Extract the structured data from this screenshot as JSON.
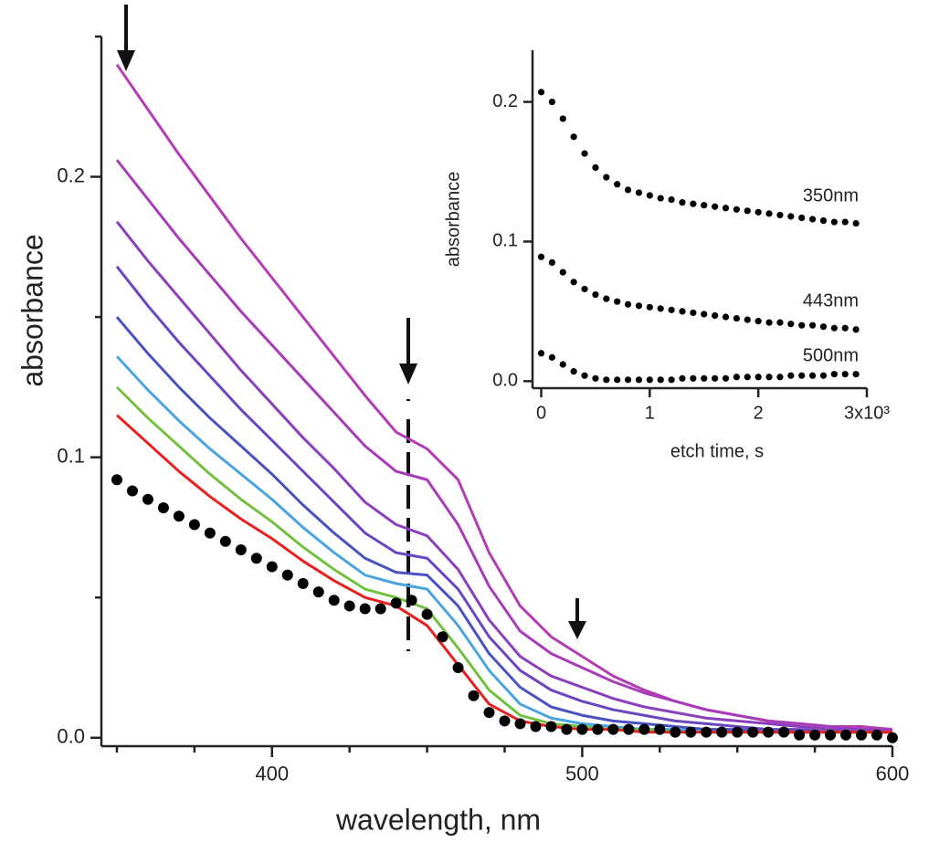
{
  "chart_data": [
    {
      "type": "line",
      "xlabel": "wavelength, nm",
      "ylabel": "absorbance",
      "x": [
        350,
        360,
        370,
        380,
        390,
        400,
        410,
        420,
        430,
        440,
        450,
        460,
        470,
        480,
        490,
        500,
        510,
        520,
        530,
        540,
        550,
        560,
        570,
        580,
        590,
        600
      ],
      "series": [
        {
          "color": "#b43cb4",
          "values": [
            0.24,
            0.224,
            0.208,
            0.193,
            0.178,
            0.164,
            0.15,
            0.136,
            0.122,
            0.109,
            0.103,
            0.092,
            0.066,
            0.047,
            0.036,
            0.029,
            0.022,
            0.017,
            0.013,
            0.01,
            0.008,
            0.006,
            0.005,
            0.004,
            0.004,
            0.003
          ]
        },
        {
          "color": "#a83cb8",
          "values": [
            0.206,
            0.192,
            0.178,
            0.165,
            0.152,
            0.14,
            0.128,
            0.116,
            0.104,
            0.095,
            0.092,
            0.076,
            0.054,
            0.038,
            0.03,
            0.025,
            0.02,
            0.016,
            0.013,
            0.01,
            0.008,
            0.006,
            0.005,
            0.004,
            0.003,
            0.003
          ]
        },
        {
          "color": "#8a40bc",
          "values": [
            0.184,
            0.17,
            0.157,
            0.144,
            0.131,
            0.119,
            0.107,
            0.096,
            0.084,
            0.076,
            0.072,
            0.06,
            0.042,
            0.029,
            0.022,
            0.018,
            0.014,
            0.011,
            0.009,
            0.007,
            0.006,
            0.005,
            0.004,
            0.003,
            0.003,
            0.002
          ]
        },
        {
          "color": "#6a46c0",
          "values": [
            0.168,
            0.154,
            0.141,
            0.129,
            0.117,
            0.106,
            0.095,
            0.084,
            0.073,
            0.066,
            0.064,
            0.053,
            0.036,
            0.024,
            0.017,
            0.013,
            0.01,
            0.008,
            0.006,
            0.005,
            0.004,
            0.003,
            0.003,
            0.002,
            0.002,
            0.002
          ]
        },
        {
          "color": "#4a52c0",
          "values": [
            0.15,
            0.137,
            0.125,
            0.114,
            0.104,
            0.094,
            0.083,
            0.073,
            0.064,
            0.059,
            0.058,
            0.047,
            0.03,
            0.018,
            0.011,
            0.008,
            0.006,
            0.005,
            0.004,
            0.003,
            0.003,
            0.002,
            0.002,
            0.002,
            0.002,
            0.002
          ]
        },
        {
          "color": "#4aa4e0",
          "values": [
            0.136,
            0.124,
            0.113,
            0.103,
            0.094,
            0.085,
            0.075,
            0.066,
            0.058,
            0.055,
            0.053,
            0.04,
            0.024,
            0.012,
            0.007,
            0.005,
            0.004,
            0.003,
            0.003,
            0.002,
            0.002,
            0.002,
            0.002,
            0.002,
            0.002,
            0.002
          ]
        },
        {
          "color": "#74c040",
          "values": [
            0.125,
            0.114,
            0.104,
            0.094,
            0.085,
            0.077,
            0.068,
            0.06,
            0.053,
            0.05,
            0.046,
            0.032,
            0.017,
            0.008,
            0.005,
            0.004,
            0.003,
            0.003,
            0.002,
            0.002,
            0.002,
            0.002,
            0.002,
            0.002,
            0.002,
            0.002
          ]
        },
        {
          "color": "#e82020",
          "values": [
            0.115,
            0.105,
            0.095,
            0.086,
            0.078,
            0.071,
            0.063,
            0.056,
            0.05,
            0.047,
            0.04,
            0.026,
            0.012,
            0.006,
            0.004,
            0.003,
            0.003,
            0.002,
            0.002,
            0.002,
            0.002,
            0.002,
            0.002,
            0.002,
            0.002,
            0.002
          ]
        },
        {
          "color": "#000000",
          "mode": "markers",
          "x": [
            350,
            355,
            360,
            365,
            370,
            375,
            380,
            385,
            390,
            395,
            400,
            405,
            410,
            415,
            420,
            425,
            430,
            435,
            440,
            445,
            450,
            455,
            460,
            465,
            470,
            475,
            480,
            485,
            490,
            495,
            500,
            505,
            510,
            515,
            520,
            525,
            530,
            535,
            540,
            545,
            550,
            555,
            560,
            565,
            570,
            575,
            580,
            585,
            590,
            595,
            600
          ],
          "values": [
            0.092,
            0.088,
            0.085,
            0.082,
            0.079,
            0.076,
            0.073,
            0.07,
            0.067,
            0.064,
            0.061,
            0.058,
            0.055,
            0.052,
            0.049,
            0.047,
            0.046,
            0.046,
            0.048,
            0.049,
            0.044,
            0.036,
            0.025,
            0.015,
            0.009,
            0.006,
            0.005,
            0.004,
            0.004,
            0.003,
            0.003,
            0.003,
            0.003,
            0.003,
            0.003,
            0.003,
            0.002,
            0.002,
            0.002,
            0.002,
            0.002,
            0.002,
            0.002,
            0.002,
            0.001,
            0.001,
            0.001,
            0.001,
            0.001,
            0.001,
            0
          ]
        }
      ],
      "xlim": [
        345,
        600
      ],
      "xticks": [
        400,
        500,
        600
      ],
      "xminorticks": [
        350,
        375,
        425,
        450,
        475,
        525,
        550,
        575
      ],
      "ylim": [
        -0.003,
        0.25
      ],
      "yticks": [
        {
          "value": 0,
          "label": "0.0"
        },
        0.1,
        0.2
      ],
      "yminorticks": [
        0.05,
        0.15,
        0.25
      ]
    },
    {
      "type": "scatter",
      "xlabel": "etch time, s",
      "ylabel": "absorbance",
      "x": [
        0,
        0.1,
        0.2,
        0.3,
        0.4,
        0.5,
        0.6,
        0.7,
        0.8,
        0.9,
        1.0,
        1.1,
        1.2,
        1.3,
        1.4,
        1.5,
        1.6,
        1.7,
        1.8,
        1.9,
        2.0,
        2.1,
        2.2,
        2.3,
        2.4,
        2.5,
        2.6,
        2.7,
        2.8,
        2.9
      ],
      "series": [
        {
          "name": "350nm",
          "color": "#000000",
          "values": [
            0.207,
            0.2,
            0.188,
            0.175,
            0.163,
            0.153,
            0.146,
            0.141,
            0.137,
            0.135,
            0.133,
            0.131,
            0.13,
            0.128,
            0.127,
            0.126,
            0.125,
            0.124,
            0.123,
            0.122,
            0.121,
            0.12,
            0.119,
            0.118,
            0.117,
            0.116,
            0.115,
            0.114,
            0.114,
            0.113
          ]
        },
        {
          "name": "443nm",
          "color": "#000000",
          "values": [
            0.089,
            0.085,
            0.078,
            0.071,
            0.066,
            0.062,
            0.059,
            0.057,
            0.055,
            0.054,
            0.053,
            0.052,
            0.051,
            0.05,
            0.049,
            0.048,
            0.047,
            0.046,
            0.045,
            0.044,
            0.043,
            0.042,
            0.042,
            0.041,
            0.04,
            0.04,
            0.039,
            0.038,
            0.038,
            0.037
          ]
        },
        {
          "name": "500nm",
          "color": "#000000",
          "values": [
            0.02,
            0.017,
            0.012,
            0.007,
            0.004,
            0.002,
            0.001,
            0.001,
            0.001,
            0.001,
            0.001,
            0.001,
            0.001,
            0.002,
            0.002,
            0.002,
            0.002,
            0.002,
            0.003,
            0.003,
            0.003,
            0.003,
            0.003,
            0.004,
            0.004,
            0.004,
            0.004,
            0.005,
            0.005,
            0.005
          ]
        }
      ],
      "xlim": [
        -0.08,
        3
      ],
      "xticks": [
        0,
        1,
        2,
        {
          "value": 3,
          "label": "3x10³"
        }
      ],
      "ylim": [
        -0.005,
        0.237
      ],
      "yticks": [
        {
          "value": 0,
          "label": "0.0"
        },
        0.1,
        0.2
      ]
    }
  ]
}
